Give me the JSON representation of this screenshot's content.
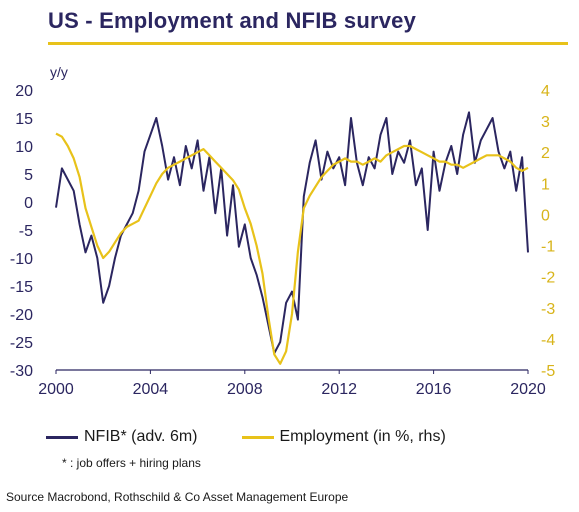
{
  "title": "US - Employment and NFIB survey",
  "unit_label": "y/y",
  "footnote": "* : job offers  + hiring plans",
  "source": "Source Macrobond, Rothschild & Co Asset Management Europe",
  "colors": {
    "nfib": "#2b2660",
    "employment": "#e8c21a",
    "accent": "#e8c21a",
    "title": "#2b2660"
  },
  "chart_data": {
    "type": "line",
    "title": "US - Employment and NFIB survey",
    "ylabel": "y/y",
    "xlim": [
      2000,
      2020
    ],
    "ylim": [
      -30,
      20
    ],
    "y2lim": [
      -5,
      4
    ],
    "x_ticks": [
      "2000",
      "2004",
      "2008",
      "2012",
      "2016",
      "2020"
    ],
    "y_ticks": [
      "20",
      "15",
      "10",
      "5",
      "0",
      "-5",
      "-10",
      "-15",
      "-20",
      "-25",
      "-30"
    ],
    "y2_ticks": [
      "4",
      "3",
      "2",
      "1",
      "0",
      "-1",
      "-2",
      "-3",
      "-4",
      "-5"
    ],
    "legend_position": "bottom",
    "grid": false,
    "series": [
      {
        "name": "NFIB* (adv. 6m)",
        "axis": "left",
        "x": [
          2000.0,
          2000.25,
          2000.5,
          2000.75,
          2001.0,
          2001.25,
          2001.5,
          2001.75,
          2002.0,
          2002.25,
          2002.5,
          2002.75,
          2003.0,
          2003.25,
          2003.5,
          2003.75,
          2004.0,
          2004.25,
          2004.5,
          2004.75,
          2005.0,
          2005.25,
          2005.5,
          2005.75,
          2006.0,
          2006.25,
          2006.5,
          2006.75,
          2007.0,
          2007.25,
          2007.5,
          2007.75,
          2008.0,
          2008.25,
          2008.5,
          2008.75,
          2009.0,
          2009.25,
          2009.5,
          2009.75,
          2010.0,
          2010.25,
          2010.5,
          2010.75,
          2011.0,
          2011.25,
          2011.5,
          2011.75,
          2012.0,
          2012.25,
          2012.5,
          2012.75,
          2013.0,
          2013.25,
          2013.5,
          2013.75,
          2014.0,
          2014.25,
          2014.5,
          2014.75,
          2015.0,
          2015.25,
          2015.5,
          2015.75,
          2016.0,
          2016.25,
          2016.5,
          2016.75,
          2017.0,
          2017.25,
          2017.5,
          2017.75,
          2018.0,
          2018.25,
          2018.5,
          2018.75,
          2019.0,
          2019.25,
          2019.5,
          2019.75,
          2020.0
        ],
        "values": [
          -1,
          6,
          4,
          2,
          -4,
          -9,
          -6,
          -10,
          -18,
          -15,
          -10,
          -6,
          -4,
          -2,
          2,
          9,
          12,
          15,
          10,
          4,
          8,
          3,
          10,
          6,
          11,
          2,
          8,
          -2,
          6,
          -6,
          3,
          -8,
          -4,
          -10,
          -13,
          -17,
          -22,
          -27,
          -25,
          -18,
          -16,
          -21,
          1,
          7,
          11,
          4,
          9,
          6,
          8,
          3,
          15,
          7,
          3,
          8,
          6,
          12,
          15,
          5,
          9,
          7,
          11,
          3,
          6,
          -5,
          9,
          2,
          7,
          10,
          5,
          12,
          16,
          7,
          11,
          13,
          15,
          9,
          6,
          9,
          2,
          8,
          -9
        ]
      },
      {
        "name": "Employment (in %, rhs)",
        "axis": "right",
        "x": [
          2000.0,
          2000.25,
          2000.5,
          2000.75,
          2001.0,
          2001.25,
          2001.5,
          2001.75,
          2002.0,
          2002.25,
          2002.5,
          2002.75,
          2003.0,
          2003.25,
          2003.5,
          2003.75,
          2004.0,
          2004.25,
          2004.5,
          2004.75,
          2005.0,
          2005.25,
          2005.5,
          2005.75,
          2006.0,
          2006.25,
          2006.5,
          2006.75,
          2007.0,
          2007.25,
          2007.5,
          2007.75,
          2008.0,
          2008.25,
          2008.5,
          2008.75,
          2009.0,
          2009.25,
          2009.5,
          2009.75,
          2010.0,
          2010.25,
          2010.5,
          2010.75,
          2011.0,
          2011.25,
          2011.5,
          2011.75,
          2012.0,
          2012.25,
          2012.5,
          2012.75,
          2013.0,
          2013.25,
          2013.5,
          2013.75,
          2014.0,
          2014.25,
          2014.5,
          2014.75,
          2015.0,
          2015.25,
          2015.5,
          2015.75,
          2016.0,
          2016.25,
          2016.5,
          2016.75,
          2017.0,
          2017.25,
          2017.5,
          2017.75,
          2018.0,
          2018.25,
          2018.5,
          2018.75,
          2019.0,
          2019.25,
          2019.5,
          2019.75,
          2020.0
        ],
        "values": [
          2.6,
          2.5,
          2.2,
          1.8,
          1.2,
          0.2,
          -0.4,
          -1.0,
          -1.4,
          -1.2,
          -0.9,
          -0.6,
          -0.4,
          -0.3,
          -0.2,
          0.2,
          0.6,
          1.0,
          1.3,
          1.5,
          1.6,
          1.7,
          1.8,
          1.9,
          2.0,
          2.1,
          1.9,
          1.7,
          1.5,
          1.3,
          1.1,
          0.8,
          0.2,
          -0.3,
          -1.0,
          -1.9,
          -3.3,
          -4.5,
          -4.8,
          -4.4,
          -3.2,
          -1.2,
          0.2,
          0.6,
          0.9,
          1.2,
          1.4,
          1.6,
          1.7,
          1.8,
          1.7,
          1.7,
          1.6,
          1.7,
          1.8,
          1.7,
          1.9,
          2.0,
          2.1,
          2.2,
          2.2,
          2.1,
          2.0,
          1.9,
          1.8,
          1.7,
          1.7,
          1.6,
          1.6,
          1.5,
          1.6,
          1.7,
          1.8,
          1.9,
          1.9,
          1.9,
          1.8,
          1.7,
          1.5,
          1.4,
          1.5
        ]
      }
    ]
  }
}
